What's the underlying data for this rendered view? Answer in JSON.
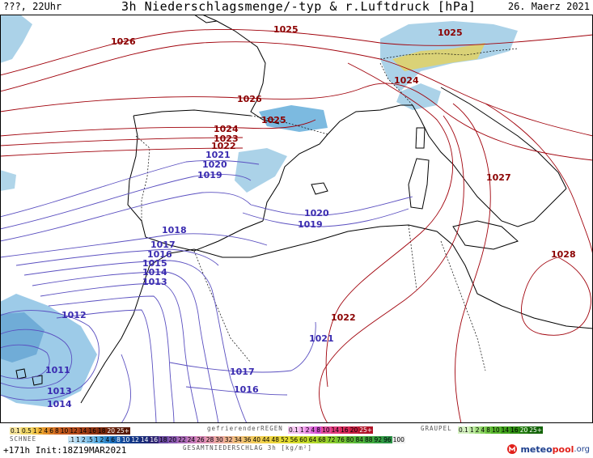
{
  "header": {
    "left": "???, 22Uhr",
    "title": "3h Niederschlagsmenge/-typ & r.Luftdruck [hPa]",
    "date": "26. Maerz 2021"
  },
  "isobars": {
    "red": [
      "1026",
      "1025",
      "1025",
      "1026",
      "1024",
      "1025",
      "1024",
      "1023",
      "1022",
      "1027",
      "1028",
      "1022"
    ],
    "blue": [
      "1021",
      "1020",
      "1019",
      "1020",
      "1019",
      "1018",
      "1017",
      "1016",
      "1015",
      "1014",
      "1013",
      "1012",
      "1011",
      "1013",
      "1014",
      "1017",
      "1016",
      "1021"
    ]
  },
  "colors": {
    "isobar_high": "#a0000a",
    "isobar_low": "#3a2bb0",
    "coast": "#000000",
    "rain": "#5ba9d8",
    "snow_hint": "#9ad4ee",
    "mix": "#f2d23a"
  },
  "legend": {
    "snow_label": "SCHNEE",
    "freezing_rain_label": "gefrierenderREGEN",
    "graupel_label": "GRAUPEL",
    "total_label": "GESAMTNIEDERSCHLAG 3h [kg/m²]",
    "snow_scale": [
      "0.1",
      "0.5",
      "1",
      "2",
      "4",
      "6",
      "8",
      "10",
      "12",
      "14",
      "16",
      "18",
      "20",
      "25+"
    ],
    "freezing_scale": [
      "0.1",
      "1",
      "2",
      "4",
      "8",
      "10",
      "14",
      "16",
      "20",
      "25+"
    ],
    "graupel_scale": [
      "0.1",
      "1",
      "2",
      "4",
      "8",
      "10",
      "14",
      "16",
      "20",
      "25+"
    ],
    "rain_scale": [
      ".1",
      "1",
      "2",
      ".5",
      "1",
      "2",
      "4",
      "6",
      "8",
      "10",
      "12",
      "14",
      "16",
      "18",
      "20",
      "22",
      "24",
      "26",
      "28",
      "30",
      "32",
      "34",
      "36",
      "40",
      "44",
      "48",
      "52",
      "56",
      "60",
      "64",
      "68",
      "72",
      "76",
      "80",
      "84",
      "88",
      "92",
      "96",
      "100"
    ]
  },
  "footer": {
    "run": "+171h Init:18Z19MAR2021",
    "brand_a": "meteo",
    "brand_b": "pool",
    "brand_c": ".org"
  }
}
